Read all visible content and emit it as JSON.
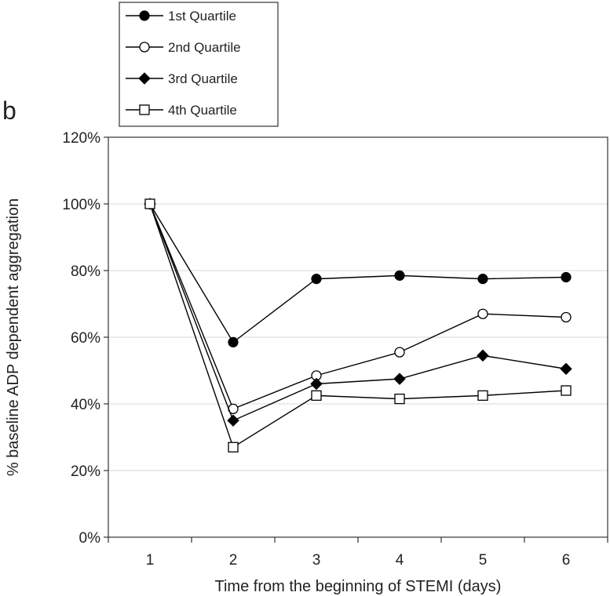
{
  "panel_label": "b",
  "chart_data": {
    "type": "line",
    "xlabel": "Time from the beginning of STEMI (days)",
    "ylabel": "% baseline ADP dependent aggregation",
    "x": [
      1,
      2,
      3,
      4,
      5,
      6
    ],
    "x_tick_labels": [
      "1",
      "2",
      "3",
      "4",
      "5",
      "6"
    ],
    "ylim": [
      0,
      120
    ],
    "y_ticks": [
      0,
      20,
      40,
      60,
      80,
      100,
      120
    ],
    "y_tick_labels": [
      "0%",
      "20%",
      "40%",
      "60%",
      "80%",
      "100%",
      "120%"
    ],
    "grid": "horizontal",
    "legend_position": "top-left, above plot",
    "series": [
      {
        "name": "1st Quartile",
        "marker": "filled-circle",
        "values": [
          100,
          58.5,
          77.5,
          78.5,
          77.5,
          78
        ]
      },
      {
        "name": "2nd Quartile",
        "marker": "open-circle",
        "values": [
          100,
          38.5,
          48.5,
          55.5,
          67,
          66
        ]
      },
      {
        "name": "3rd Quartile",
        "marker": "filled-diamond",
        "values": [
          100,
          35,
          46,
          47.5,
          54.5,
          50.5
        ]
      },
      {
        "name": "4th Quartile",
        "marker": "open-square",
        "values": [
          100,
          27,
          42.5,
          41.5,
          42.5,
          44
        ]
      }
    ]
  }
}
